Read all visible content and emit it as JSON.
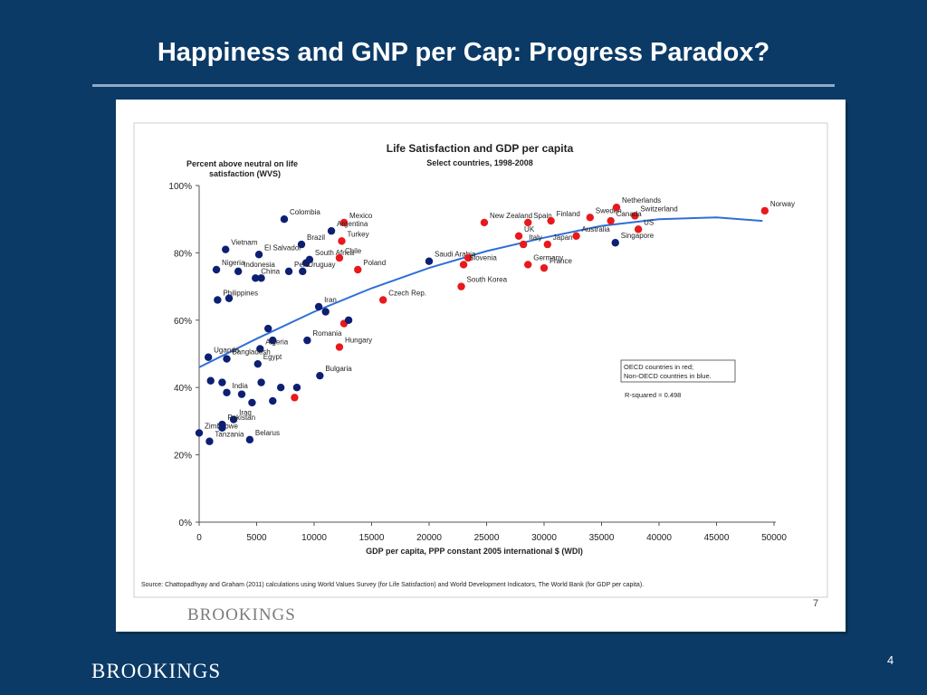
{
  "slide": {
    "title": "Happiness and GNP per Cap: Progress Paradox?",
    "logo": "BROOKINGS",
    "page_number": "4",
    "inner_logo": "BROOKINGS",
    "inner_page_number": "7"
  },
  "chart_data": {
    "type": "scatter",
    "title": "Life Satisfaction and GDP per capita",
    "subtitle": "Select countries, 1998-2008",
    "ylabel_lines": [
      "Percent above neutral on life",
      "satisfaction (WVS)"
    ],
    "xlabel": "GDP per capita, PPP constant 2005 international $ (WDI)",
    "xlim": [
      0,
      50000
    ],
    "ylim": [
      0,
      100
    ],
    "x_ticks": [
      0,
      5000,
      10000,
      15000,
      20000,
      25000,
      30000,
      35000,
      40000,
      45000,
      50000
    ],
    "y_ticks": [
      0,
      20,
      40,
      60,
      80,
      100
    ],
    "y_tick_labels": [
      "0%",
      "20%",
      "40%",
      "60%",
      "80%",
      "100%"
    ],
    "colors": {
      "oecd": "#e8191c",
      "non_oecd": "#0d1f73",
      "trend": "#2f6fd6"
    },
    "legend_lines": [
      "OECD countries in red;",
      "Non-OECD countries in blue."
    ],
    "r_squared_text": "R-squared = 0.498",
    "source_text": "Source: Chattopadhyay and Graham (2011) calculations using World Values Survey (for Life Satisfaction) and World Development Indicators, The World Bank (for GDP per capita).",
    "trend": [
      [
        0,
        46
      ],
      [
        5000,
        54.5
      ],
      [
        10000,
        62.5
      ],
      [
        15000,
        69.5
      ],
      [
        20000,
        75.5
      ],
      [
        25000,
        80.5
      ],
      [
        30000,
        84.5
      ],
      [
        35000,
        88
      ],
      [
        40000,
        90
      ],
      [
        45000,
        90.5
      ],
      [
        49000,
        89.5
      ]
    ],
    "points": [
      {
        "name": "Colombia",
        "x": 7400,
        "y": 90,
        "oecd": false
      },
      {
        "name": "Mexico",
        "x": 12600,
        "y": 89,
        "oecd": true
      },
      {
        "name": "Argentina",
        "x": 11500,
        "y": 86.5,
        "oecd": false
      },
      {
        "name": "Brazil",
        "x": 8900,
        "y": 82.5,
        "oecd": false
      },
      {
        "name": "Turkey",
        "x": 12400,
        "y": 83.5,
        "oecd": true
      },
      {
        "name": "Vietnam",
        "x": 2300,
        "y": 81,
        "oecd": false
      },
      {
        "name": "El Salvador",
        "x": 5200,
        "y": 79.5,
        "oecd": false
      },
      {
        "name": "South Africa",
        "x": 9600,
        "y": 78,
        "oecd": false
      },
      {
        "name": "",
        "x": 9300,
        "y": 77,
        "oecd": false
      },
      {
        "name": "Chile",
        "x": 12200,
        "y": 78.5,
        "oecd": true
      },
      {
        "name": "Indonesia",
        "x": 3400,
        "y": 74.5,
        "oecd": false
      },
      {
        "name": "Nigeria",
        "x": 1500,
        "y": 75,
        "oecd": false
      },
      {
        "name": "Peru",
        "x": 7800,
        "y": 74.5,
        "oecd": false
      },
      {
        "name": "Uruguay",
        "x": 9000,
        "y": 74.5,
        "oecd": false
      },
      {
        "name": "Poland",
        "x": 13800,
        "y": 75,
        "oecd": true
      },
      {
        "name": "China",
        "x": 4900,
        "y": 72.5,
        "oecd": false
      },
      {
        "name": "",
        "x": 5400,
        "y": 72.5,
        "oecd": false
      },
      {
        "name": "Philippines",
        "x": 1600,
        "y": 66,
        "oecd": false
      },
      {
        "name": "",
        "x": 2600,
        "y": 66.5,
        "oecd": false
      },
      {
        "name": "Iran",
        "x": 10400,
        "y": 64,
        "oecd": false
      },
      {
        "name": "",
        "x": 11000,
        "y": 62.5,
        "oecd": false
      },
      {
        "name": "Czech Rep.",
        "x": 16000,
        "y": 66,
        "oecd": true
      },
      {
        "name": "",
        "x": 12600,
        "y": 59,
        "oecd": true
      },
      {
        "name": "",
        "x": 13000,
        "y": 60,
        "oecd": false
      },
      {
        "name": "",
        "x": 6000,
        "y": 57.5,
        "oecd": false
      },
      {
        "name": "",
        "x": 6400,
        "y": 54,
        "oecd": false
      },
      {
        "name": "Algeria",
        "x": 5300,
        "y": 51.5,
        "oecd": false
      },
      {
        "name": "Romania",
        "x": 9400,
        "y": 54,
        "oecd": false
      },
      {
        "name": "Hungary",
        "x": 12200,
        "y": 52,
        "oecd": true
      },
      {
        "name": "Uganda",
        "x": 800,
        "y": 49,
        "oecd": false
      },
      {
        "name": "Bangladesh",
        "x": 2400,
        "y": 48.5,
        "oecd": false
      },
      {
        "name": "Egypt",
        "x": 5100,
        "y": 47,
        "oecd": false
      },
      {
        "name": "Bulgaria",
        "x": 10500,
        "y": 43.5,
        "oecd": false
      },
      {
        "name": "",
        "x": 1000,
        "y": 42,
        "oecd": false
      },
      {
        "name": "",
        "x": 2000,
        "y": 41.5,
        "oecd": false
      },
      {
        "name": "",
        "x": 5400,
        "y": 41.5,
        "oecd": false
      },
      {
        "name": "",
        "x": 7100,
        "y": 40,
        "oecd": false
      },
      {
        "name": "",
        "x": 8500,
        "y": 40,
        "oecd": false
      },
      {
        "name": "India",
        "x": 2400,
        "y": 38.5,
        "oecd": false
      },
      {
        "name": "",
        "x": 3700,
        "y": 38,
        "oecd": false
      },
      {
        "name": "",
        "x": 8300,
        "y": 37,
        "oecd": true
      },
      {
        "name": "",
        "x": 4600,
        "y": 35.5,
        "oecd": false
      },
      {
        "name": "",
        "x": 6400,
        "y": 36,
        "oecd": false
      },
      {
        "name": "Zimbabwe",
        "x": 0,
        "y": 26.5,
        "oecd": false
      },
      {
        "name": "Iraq",
        "x": 3000,
        "y": 30.5,
        "oecd": false
      },
      {
        "name": "Pakistan",
        "x": 2000,
        "y": 29,
        "oecd": false
      },
      {
        "name": "",
        "x": 2000,
        "y": 28,
        "oecd": false
      },
      {
        "name": "Tanzania",
        "x": 900,
        "y": 24,
        "oecd": false
      },
      {
        "name": "Belarus",
        "x": 4400,
        "y": 24.5,
        "oecd": false
      },
      {
        "name": "Saudi Arabia",
        "x": 20000,
        "y": 77.5,
        "oecd": false
      },
      {
        "name": "New Zealand",
        "x": 24800,
        "y": 89,
        "oecd": true
      },
      {
        "name": "Spain",
        "x": 28600,
        "y": 89,
        "oecd": true
      },
      {
        "name": "Finland",
        "x": 30600,
        "y": 89.5,
        "oecd": true
      },
      {
        "name": "Sweden",
        "x": 34000,
        "y": 90.5,
        "oecd": true
      },
      {
        "name": "Netherlands",
        "x": 36300,
        "y": 93.5,
        "oecd": true
      },
      {
        "name": "Switzerland",
        "x": 37900,
        "y": 91,
        "oecd": true
      },
      {
        "name": "Canada",
        "x": 35800,
        "y": 89.5,
        "oecd": true
      },
      {
        "name": "Norway",
        "x": 49200,
        "y": 92.5,
        "oecd": true
      },
      {
        "name": "US",
        "x": 38200,
        "y": 87,
        "oecd": true
      },
      {
        "name": "UK",
        "x": 27800,
        "y": 85,
        "oecd": true
      },
      {
        "name": "Australia",
        "x": 32800,
        "y": 85,
        "oecd": true
      },
      {
        "name": "Italy",
        "x": 28200,
        "y": 82.5,
        "oecd": true
      },
      {
        "name": "Japan",
        "x": 30300,
        "y": 82.5,
        "oecd": true
      },
      {
        "name": "Singapore",
        "x": 36200,
        "y": 83,
        "oecd": false
      },
      {
        "name": "",
        "x": 23400,
        "y": 78.5,
        "oecd": true
      },
      {
        "name": "Slovenia",
        "x": 23000,
        "y": 76.5,
        "oecd": true
      },
      {
        "name": "Germany",
        "x": 28600,
        "y": 76.5,
        "oecd": true
      },
      {
        "name": "France",
        "x": 30000,
        "y": 75.5,
        "oecd": true
      },
      {
        "name": "South Korea",
        "x": 22800,
        "y": 70,
        "oecd": true
      }
    ]
  }
}
